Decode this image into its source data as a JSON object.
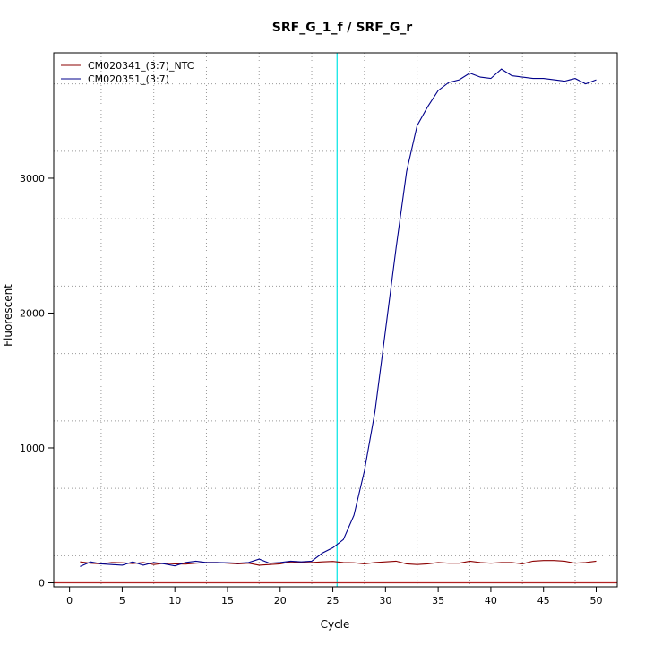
{
  "chart_data": {
    "type": "line",
    "title": "SRF_G_1_f / SRF_G_r",
    "xlabel": "Cycle",
    "ylabel": "Fluorescent",
    "xlim": [
      -1.5,
      52
    ],
    "ylim": [
      -30,
      3930
    ],
    "x_ticks": [
      0,
      5,
      10,
      15,
      20,
      25,
      30,
      35,
      40,
      45,
      50
    ],
    "y_ticks": [
      0,
      1000,
      2000,
      3000
    ],
    "x_grid": [
      3,
      8,
      13,
      18,
      23,
      28,
      33,
      38,
      43,
      48
    ],
    "y_grid": [
      200,
      700,
      1200,
      1700,
      2200,
      2700,
      3200,
      3700
    ],
    "grid": true,
    "legend_position": "top-left",
    "threshold": {
      "x": 25.4,
      "color": "#00e5e5"
    },
    "baseline": {
      "y": 0,
      "color": "#b22222"
    },
    "series": [
      {
        "name": "CM020341_(3:7)_NTC",
        "color": "#8b0000",
        "x": [
          1,
          2,
          3,
          4,
          5,
          6,
          7,
          8,
          9,
          10,
          11,
          12,
          13,
          14,
          15,
          16,
          17,
          18,
          19,
          20,
          21,
          22,
          23,
          24,
          25,
          26,
          27,
          28,
          29,
          30,
          31,
          32,
          33,
          34,
          35,
          36,
          37,
          38,
          39,
          40,
          41,
          42,
          43,
          44,
          45,
          46,
          47,
          48,
          49,
          50
        ],
        "values": [
          155,
          145,
          140,
          150,
          148,
          142,
          150,
          135,
          145,
          140,
          138,
          145,
          150,
          150,
          145,
          140,
          145,
          130,
          135,
          140,
          155,
          150,
          150,
          155,
          158,
          150,
          148,
          140,
          150,
          155,
          160,
          140,
          135,
          140,
          150,
          145,
          145,
          160,
          150,
          145,
          150,
          150,
          140,
          160,
          165,
          165,
          160,
          145,
          150,
          160
        ]
      },
      {
        "name": "CM020351_(3:7)",
        "color": "#00008b",
        "x": [
          1,
          2,
          3,
          4,
          5,
          6,
          7,
          8,
          9,
          10,
          11,
          12,
          13,
          14,
          15,
          16,
          17,
          18,
          19,
          20,
          21,
          22,
          23,
          24,
          25,
          26,
          27,
          28,
          29,
          30,
          31,
          32,
          33,
          34,
          35,
          36,
          37,
          38,
          39,
          40,
          41,
          42,
          43,
          44,
          45,
          46,
          47,
          48,
          49,
          50
        ],
        "values": [
          120,
          155,
          140,
          135,
          130,
          155,
          130,
          150,
          140,
          125,
          150,
          160,
          150,
          150,
          148,
          145,
          150,
          175,
          145,
          150,
          160,
          155,
          160,
          220,
          260,
          320,
          500,
          830,
          1270,
          1870,
          2480,
          3050,
          3390,
          3530,
          3650,
          3710,
          3730,
          3780,
          3750,
          3740,
          3810,
          3760,
          3750,
          3740,
          3740,
          3730,
          3720,
          3740,
          3700,
          3730
        ]
      }
    ]
  }
}
